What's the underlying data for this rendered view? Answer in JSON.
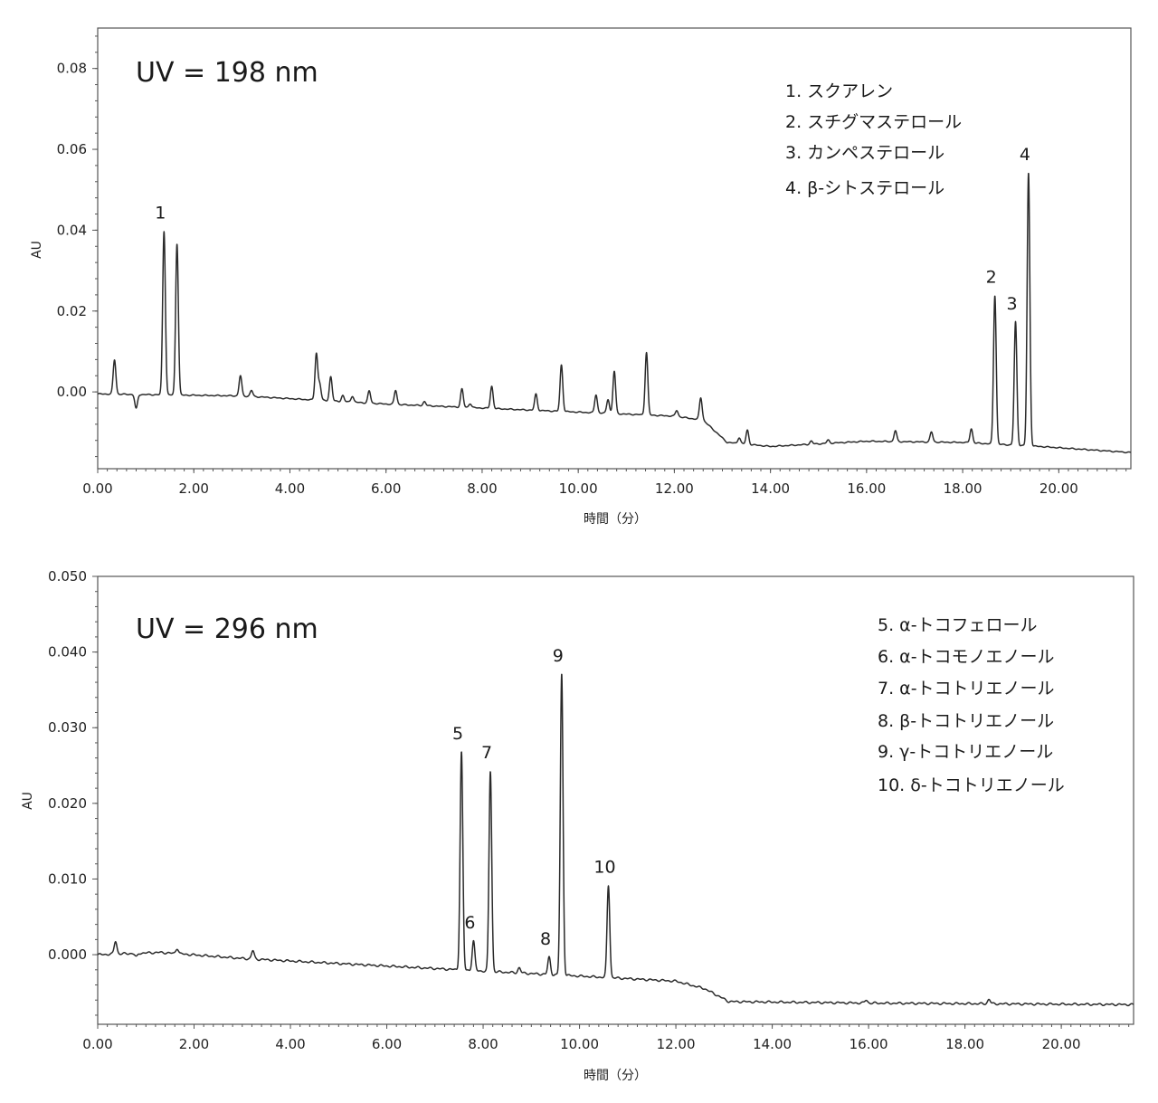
{
  "chart_data": [
    {
      "type": "line",
      "title": "UV = 198 nm",
      "xlabel": "時間（分）",
      "ylabel": "AU",
      "xlim": [
        0,
        21.5
      ],
      "ylim": [
        -0.019,
        0.09
      ],
      "xticks": [
        "0.00",
        "2.00",
        "4.00",
        "6.00",
        "8.00",
        "10.00",
        "12.00",
        "14.00",
        "16.00",
        "18.00",
        "20.00"
      ],
      "yticks": [
        "0.00",
        "0.02",
        "0.04",
        "0.06",
        "0.08"
      ],
      "grid": false,
      "legend_position": "top-right",
      "legend": [
        "1. スクアレン",
        "2. スチグマステロール",
        "3. カンペステロール",
        "4. β-シトステロール"
      ],
      "baseline": [
        [
          0,
          -0.0005
        ],
        [
          3,
          -0.001
        ],
        [
          6,
          -0.003
        ],
        [
          9,
          -0.0045
        ],
        [
          12,
          -0.006
        ],
        [
          12.6,
          -0.007
        ],
        [
          13.1,
          -0.0125
        ],
        [
          14,
          -0.0135
        ],
        [
          16,
          -0.0122
        ],
        [
          18,
          -0.0125
        ],
        [
          19.6,
          -0.0135
        ],
        [
          21.5,
          -0.015
        ]
      ],
      "peaks": [
        {
          "x": 0.35,
          "h": 0.0085
        },
        {
          "x": 0.8,
          "h": -0.0035
        },
        {
          "x": 1.38,
          "h": 0.0405,
          "label": "1"
        },
        {
          "x": 1.65,
          "h": 0.0375
        },
        {
          "x": 2.97,
          "h": 0.005
        },
        {
          "x": 3.2,
          "h": 0.0015
        },
        {
          "x": 4.55,
          "h": 0.0115
        },
        {
          "x": 4.62,
          "h": 0.004
        },
        {
          "x": 4.85,
          "h": 0.006
        },
        {
          "x": 5.1,
          "h": 0.0015
        },
        {
          "x": 5.3,
          "h": 0.0015
        },
        {
          "x": 5.65,
          "h": 0.003
        },
        {
          "x": 6.2,
          "h": 0.0035
        },
        {
          "x": 6.8,
          "h": 0.001
        },
        {
          "x": 7.58,
          "h": 0.0045
        },
        {
          "x": 7.75,
          "h": 0.001
        },
        {
          "x": 8.2,
          "h": 0.0055
        },
        {
          "x": 9.12,
          "h": 0.004
        },
        {
          "x": 9.65,
          "h": 0.0115
        },
        {
          "x": 10.37,
          "h": 0.0045
        },
        {
          "x": 10.62,
          "h": 0.0035
        },
        {
          "x": 10.75,
          "h": 0.0105
        },
        {
          "x": 11.42,
          "h": 0.0155
        },
        {
          "x": 12.05,
          "h": 0.0015
        },
        {
          "x": 12.55,
          "h": 0.0055
        },
        {
          "x": 13.35,
          "h": 0.0015
        },
        {
          "x": 13.52,
          "h": 0.0035
        },
        {
          "x": 14.85,
          "h": 0.0008
        },
        {
          "x": 15.2,
          "h": 0.0008
        },
        {
          "x": 16.6,
          "h": 0.0027
        },
        {
          "x": 17.35,
          "h": 0.0025
        },
        {
          "x": 18.18,
          "h": 0.0035
        },
        {
          "x": 18.67,
          "h": 0.0368,
          "label": "2"
        },
        {
          "x": 19.1,
          "h": 0.0305,
          "label": "3"
        },
        {
          "x": 19.37,
          "h": 0.0675,
          "label": "4"
        }
      ]
    },
    {
      "type": "line",
      "title": "UV = 296 nm",
      "xlabel": "時間（分）",
      "ylabel": "AU",
      "xlim": [
        0,
        21.5
      ],
      "ylim": [
        -0.0092,
        0.05
      ],
      "xticks": [
        "0.00",
        "2.00",
        "4.00",
        "6.00",
        "8.00",
        "10.00",
        "12.00",
        "14.00",
        "16.00",
        "18.00",
        "20.00"
      ],
      "yticks": [
        "0.000",
        "0.010",
        "0.020",
        "0.030",
        "0.040",
        "0.050"
      ],
      "grid": false,
      "legend_position": "top-right",
      "legend": [
        "5. α-トコフェロール",
        "6. α-トコモノエノール",
        "7. α-トコトリエノール",
        "8. β-トコトリエノール",
        "9. γ-トコトリエノール",
        "10. δ-トコトリエノール"
      ],
      "baseline": [
        [
          0,
          0
        ],
        [
          1.3,
          0.0003
        ],
        [
          3,
          -0.0005
        ],
        [
          6,
          -0.0015
        ],
        [
          9,
          -0.0025
        ],
        [
          12,
          -0.0035
        ],
        [
          12.6,
          -0.0045
        ],
        [
          13.1,
          -0.0062
        ],
        [
          16,
          -0.0064
        ],
        [
          21.5,
          -0.0066
        ]
      ],
      "peaks": [
        {
          "x": 0.37,
          "h": 0.0017
        },
        {
          "x": 0.8,
          "h": -0.0005
        },
        {
          "x": 1.65,
          "h": 0.0007
        },
        {
          "x": 3.22,
          "h": 0.0011
        },
        {
          "x": 7.55,
          "h": 0.0288,
          "label": "5"
        },
        {
          "x": 7.8,
          "h": 0.0039,
          "label": "6"
        },
        {
          "x": 8.15,
          "h": 0.0265,
          "label": "7"
        },
        {
          "x": 8.75,
          "h": 0.0007
        },
        {
          "x": 9.37,
          "h": 0.0023,
          "label": "8"
        },
        {
          "x": 9.63,
          "h": 0.0398,
          "label": "9"
        },
        {
          "x": 10.6,
          "h": 0.0122,
          "label": "10"
        },
        {
          "x": 15.95,
          "h": 0.0004
        },
        {
          "x": 18.5,
          "h": 0.0006
        }
      ]
    }
  ]
}
